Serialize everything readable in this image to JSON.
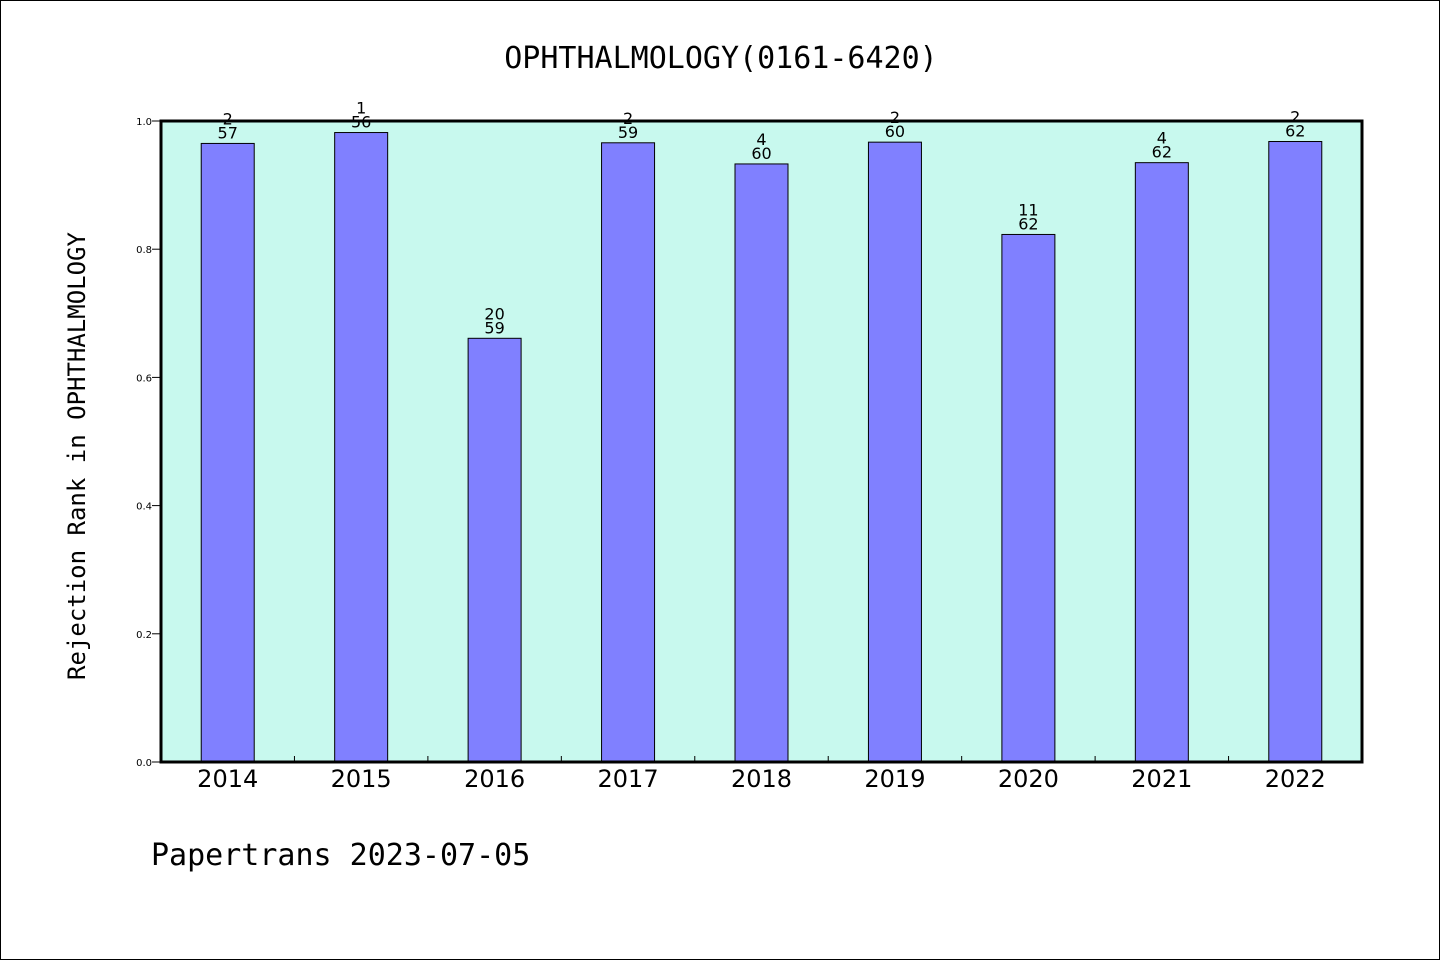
{
  "chart_data": {
    "type": "bar",
    "title": "OPHTHALMOLOGY(0161-6420)",
    "xlabel": "",
    "ylabel": "Rejection Rank in OPHTHALMOLOGY",
    "categories": [
      "2014",
      "2015",
      "2016",
      "2017",
      "2018",
      "2019",
      "2020",
      "2021",
      "2022"
    ],
    "values": [
      0.965,
      0.982,
      0.661,
      0.966,
      0.933,
      0.967,
      0.823,
      0.935,
      0.968
    ],
    "rank": [
      "2",
      "1",
      "20",
      "2",
      "4",
      "2",
      "11",
      "4",
      "2"
    ],
    "total": [
      "57",
      "56",
      "59",
      "59",
      "60",
      "60",
      "62",
      "62",
      "62"
    ],
    "ylim": [
      0,
      1.0
    ],
    "yticks": [
      "0.0",
      "0.2",
      "0.4",
      "0.6",
      "0.8",
      "1.0"
    ],
    "grid": false,
    "colors": {
      "plot_bg": "#c8f9ee",
      "bar": "#8080ff"
    }
  },
  "footer": "Papertrans 2023-07-05"
}
